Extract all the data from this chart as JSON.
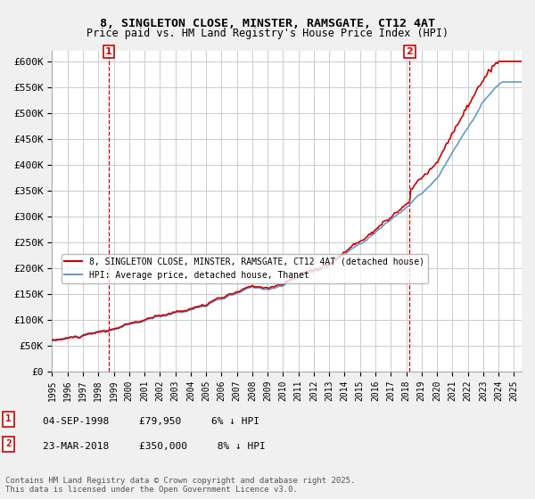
{
  "title_line1": "8, SINGLETON CLOSE, MINSTER, RAMSGATE, CT12 4AT",
  "title_line2": "Price paid vs. HM Land Registry's House Price Index (HPI)",
  "ylabel": "",
  "ylim": [
    0,
    620000
  ],
  "yticks": [
    0,
    50000,
    100000,
    150000,
    200000,
    250000,
    300000,
    350000,
    400000,
    450000,
    500000,
    550000,
    600000
  ],
  "ytick_labels": [
    "£0",
    "£50K",
    "£100K",
    "£150K",
    "£200K",
    "£250K",
    "£300K",
    "£350K",
    "£400K",
    "£450K",
    "£500K",
    "£550K",
    "£600K"
  ],
  "hpi_color": "#6699cc",
  "price_color": "#cc0000",
  "marker1_date": 1998.67,
  "marker1_label": "1",
  "marker1_text": "04-SEP-1998    £79,950    6% ↓ HPI",
  "marker2_date": 2018.23,
  "marker2_label": "2",
  "marker2_text": "23-MAR-2018    £350,000    8% ↓ HPI",
  "legend_label_price": "8, SINGLETON CLOSE, MINSTER, RAMSGATE, CT12 4AT (detached house)",
  "legend_label_hpi": "HPI: Average price, detached house, Thanet",
  "footer": "Contains HM Land Registry data © Crown copyright and database right 2025.\nThis data is licensed under the Open Government Licence v3.0.",
  "background_color": "#f0f0f0",
  "plot_bg_color": "#ffffff",
  "grid_color": "#cccccc",
  "vline_color": "#cc0000",
  "vline_style": "--",
  "box_color": "#cc0000"
}
